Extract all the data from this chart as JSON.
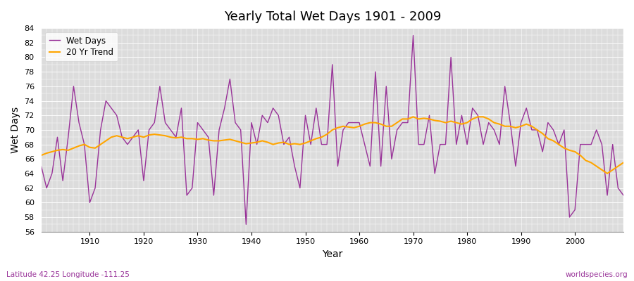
{
  "title": "Yearly Total Wet Days 1901 - 2009",
  "xlabel": "Year",
  "ylabel": "Wet Days",
  "footer_left": "Latitude 42.25 Longitude -111.25",
  "footer_right": "worldspecies.org",
  "wet_days_color": "#993399",
  "trend_color": "#FFA500",
  "background_color": "#DCDCDC",
  "ylim": [
    56,
    84
  ],
  "yticks": [
    56,
    58,
    60,
    62,
    64,
    66,
    68,
    70,
    72,
    74,
    76,
    78,
    80,
    82,
    84
  ],
  "years": [
    1901,
    1902,
    1903,
    1904,
    1905,
    1906,
    1907,
    1908,
    1909,
    1910,
    1911,
    1912,
    1913,
    1914,
    1915,
    1916,
    1917,
    1918,
    1919,
    1920,
    1921,
    1922,
    1923,
    1924,
    1925,
    1926,
    1927,
    1928,
    1929,
    1930,
    1931,
    1932,
    1933,
    1934,
    1935,
    1936,
    1937,
    1938,
    1939,
    1940,
    1941,
    1942,
    1943,
    1944,
    1945,
    1946,
    1947,
    1948,
    1949,
    1950,
    1951,
    1952,
    1953,
    1954,
    1955,
    1956,
    1957,
    1958,
    1959,
    1960,
    1961,
    1962,
    1963,
    1964,
    1965,
    1966,
    1967,
    1968,
    1969,
    1970,
    1971,
    1972,
    1973,
    1974,
    1975,
    1976,
    1977,
    1978,
    1979,
    1980,
    1981,
    1982,
    1983,
    1984,
    1985,
    1986,
    1987,
    1988,
    1989,
    1990,
    1991,
    1992,
    1993,
    1994,
    1995,
    1996,
    1997,
    1998,
    1999,
    2000,
    2001,
    2002,
    2003,
    2004,
    2005,
    2006,
    2007,
    2008,
    2009
  ],
  "wet_days": [
    65,
    62,
    64,
    69,
    63,
    69,
    76,
    71,
    68,
    60,
    62,
    70,
    74,
    73,
    72,
    69,
    68,
    69,
    70,
    63,
    70,
    71,
    76,
    71,
    70,
    69,
    73,
    61,
    62,
    71,
    70,
    69,
    61,
    70,
    73,
    77,
    71,
    70,
    57,
    71,
    68,
    72,
    71,
    73,
    72,
    68,
    69,
    65,
    62,
    72,
    68,
    73,
    68,
    68,
    79,
    65,
    70,
    71,
    71,
    71,
    68,
    65,
    78,
    65,
    76,
    66,
    70,
    71,
    71,
    83,
    68,
    68,
    72,
    64,
    68,
    68,
    80,
    68,
    72,
    68,
    73,
    72,
    68,
    71,
    70,
    68,
    76,
    71,
    65,
    71,
    73,
    70,
    70,
    67,
    71,
    70,
    68,
    70,
    58,
    59,
    68,
    68,
    68,
    70,
    68,
    61,
    68,
    62,
    61
  ],
  "trend": [
    66.5,
    66.8,
    67.0,
    67.2,
    67.3,
    67.2,
    67.5,
    67.8,
    68.0,
    67.6,
    67.5,
    68.0,
    68.5,
    69.0,
    69.2,
    69.0,
    68.8,
    69.0,
    69.2,
    69.0,
    69.3,
    69.4,
    69.3,
    69.2,
    69.0,
    68.9,
    69.0,
    68.8,
    68.8,
    68.7,
    68.8,
    68.6,
    68.5,
    68.5,
    68.6,
    68.7,
    68.5,
    68.3,
    68.1,
    68.2,
    68.3,
    68.5,
    68.3,
    68.0,
    68.2,
    68.3,
    68.0,
    68.1,
    68.0,
    68.2,
    68.5,
    68.8,
    69.0,
    69.4,
    70.0,
    70.3,
    70.5,
    70.4,
    70.3,
    70.5,
    70.8,
    71.0,
    71.0,
    70.8,
    70.5,
    70.5,
    71.0,
    71.5,
    71.5,
    71.8,
    71.5,
    71.6,
    71.5,
    71.3,
    71.2,
    71.0,
    71.2,
    71.0,
    70.8,
    71.0,
    71.5,
    71.8,
    71.8,
    71.5,
    71.0,
    70.8,
    70.5,
    70.5,
    70.3,
    70.5,
    70.8,
    70.5,
    70.0,
    69.5,
    68.8,
    68.5,
    68.0,
    67.5,
    67.2,
    67.0,
    66.5,
    65.8,
    65.5,
    65.0,
    64.5,
    64.0,
    64.5,
    65.0,
    65.5
  ]
}
